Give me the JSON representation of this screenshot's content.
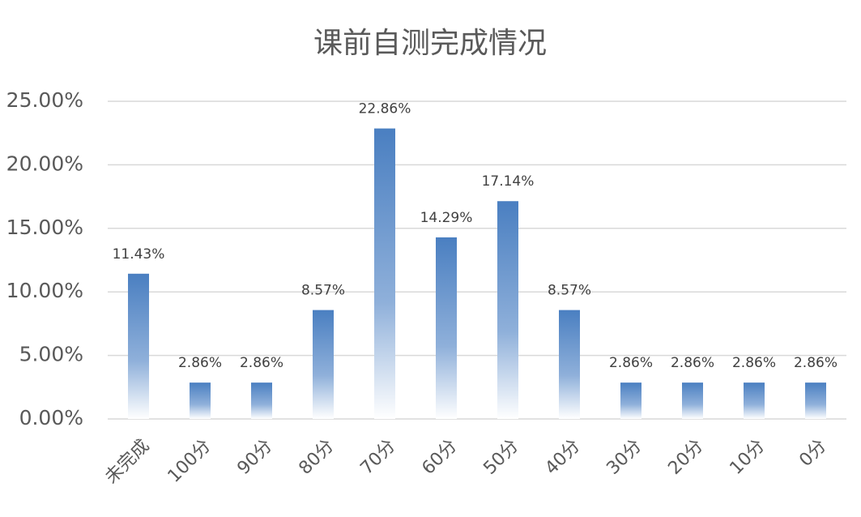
{
  "chart_data": {
    "type": "bar",
    "title": "课前自测完成情况",
    "categories": [
      "未完成",
      "100分",
      "90分",
      "80分",
      "70分",
      "60分",
      "50分",
      "40分",
      "30分",
      "20分",
      "10分",
      "0分"
    ],
    "values": [
      11.43,
      2.86,
      2.86,
      8.57,
      22.86,
      14.29,
      17.14,
      8.57,
      2.86,
      2.86,
      2.86,
      2.86
    ],
    "value_labels": [
      "11.43%",
      "2.86%",
      "2.86%",
      "8.57%",
      "22.86%",
      "14.29%",
      "17.14%",
      "8.57%",
      "2.86%",
      "2.86%",
      "2.86%",
      "2.86%"
    ],
    "color": "#4a7fc1",
    "ylim": [
      0,
      25
    ],
    "yticks": [
      {
        "value": 0,
        "label": "0.00%"
      },
      {
        "value": 5,
        "label": "5.00%"
      },
      {
        "value": 10,
        "label": "10.00%"
      },
      {
        "value": 15,
        "label": "15.00%"
      },
      {
        "value": 20,
        "label": "20.00%"
      },
      {
        "value": 25,
        "label": "25.00%"
      }
    ],
    "grid": true
  }
}
